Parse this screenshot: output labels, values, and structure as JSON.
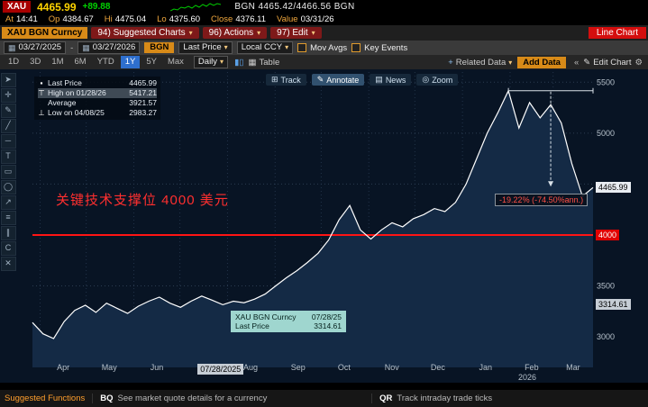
{
  "top_quote": {
    "ticker": "XAU",
    "price": "4465.99",
    "change": "+89.88",
    "bid_ask": "BGN 4465.42/4466.56 BGN",
    "stats": [
      {
        "label": "At",
        "value": "14:41"
      },
      {
        "label": "Op",
        "value": "4384.67"
      },
      {
        "label": "Hi",
        "value": "4475.04"
      },
      {
        "label": "Lo",
        "value": "4375.60"
      },
      {
        "label": "Close",
        "value": "4376.11"
      },
      {
        "label": "Value",
        "value": "03/31/26"
      }
    ]
  },
  "menubar": {
    "security": "XAU BGN Curncy",
    "menus": [
      "94) Suggested Charts",
      "96) Actions",
      "97) Edit"
    ],
    "chart_type": "Line Chart"
  },
  "controls": {
    "date_from": "03/27/2025",
    "date_to": "03/27/2026",
    "source": "BGN",
    "field": "Last Price",
    "currency": "Local CCY",
    "mov_avgs_label": "Mov Avgs",
    "key_events_label": "Key Events"
  },
  "tabs": {
    "periods": [
      "1D",
      "3D",
      "1M",
      "6M",
      "YTD",
      "1Y",
      "5Y",
      "Max"
    ],
    "active": "1Y",
    "frequency": "Daily",
    "table_label": "Table",
    "related_label": "Related Data",
    "add_data_label": "Add Data",
    "edit_chart_label": "Edit Chart"
  },
  "chart_toolbar": [
    {
      "label": "Track",
      "glyph": "⊞"
    },
    {
      "label": "Annotate",
      "glyph": "✎"
    },
    {
      "label": "News",
      "glyph": "▤"
    },
    {
      "label": "Zoom",
      "glyph": "◎"
    }
  ],
  "chart_tools": [
    {
      "name": "pointer",
      "glyph": "➤"
    },
    {
      "name": "crosshair",
      "glyph": "✛"
    },
    {
      "name": "annotate-pencil",
      "glyph": "✎"
    },
    {
      "name": "trendline",
      "glyph": "╱"
    },
    {
      "name": "horizontal-line",
      "glyph": "─"
    },
    {
      "name": "text-tool",
      "glyph": "T"
    },
    {
      "name": "rectangle-tool",
      "glyph": "▭"
    },
    {
      "name": "ellipse-tool",
      "glyph": "◯"
    },
    {
      "name": "arrow-tool",
      "glyph": "↗"
    },
    {
      "name": "fib-retracement",
      "glyph": "≡"
    },
    {
      "name": "channel-tool",
      "glyph": "∥"
    },
    {
      "name": "clone-tool",
      "glyph": "C"
    },
    {
      "name": "delete-tool",
      "glyph": "✕"
    }
  ],
  "legend": {
    "rows": [
      {
        "marker": "▪",
        "label": "Last Price",
        "value": "4465.99"
      },
      {
        "marker": "⊤",
        "label": "High on 01/28/26",
        "value": "5417.21"
      },
      {
        "marker": "",
        "label": "Average",
        "value": "3921.57"
      },
      {
        "marker": "⊥",
        "label": "Low on 04/08/25",
        "value": "2983.27"
      }
    ]
  },
  "annotation": {
    "support_text": "关键技术支撑位 4000 美元",
    "drawdown": "-19.22% (-74.50%ann.)"
  },
  "tooltip": {
    "title": "XAU BGN Curncy",
    "date": "07/28/25",
    "field": "Last Price",
    "value": "3314.61"
  },
  "axis_badges": {
    "last": "4465.99",
    "support": "4000",
    "crosshair": "3314.61",
    "crosshair_date": "07/28/2025"
  },
  "chart_data": {
    "type": "area",
    "title": "XAU BGN Curncy Last Price",
    "x_range": [
      "03/27/2025",
      "03/27/2026"
    ],
    "ylim": [
      2700,
      5600
    ],
    "y_ticks": [
      3000,
      3500,
      4000,
      4500,
      5000,
      5500
    ],
    "x_tick_labels": [
      "Apr",
      "May",
      "Jun",
      "Jul",
      "Aug",
      "Sep",
      "Oct",
      "Nov",
      "Dec",
      "Jan",
      "Feb",
      "Mar"
    ],
    "year_label": "2026",
    "support_level": 4000,
    "last_price": 4465.99,
    "high": {
      "date": "01/28/26",
      "value": 5417.21
    },
    "average": 3921.57,
    "low": {
      "date": "04/08/25",
      "value": 2983.27
    },
    "values": [
      3140,
      3030,
      2983,
      3150,
      3260,
      3310,
      3240,
      3330,
      3280,
      3230,
      3300,
      3350,
      3390,
      3330,
      3290,
      3350,
      3400,
      3360,
      3315,
      3350,
      3335,
      3370,
      3420,
      3500,
      3580,
      3650,
      3730,
      3820,
      3950,
      4150,
      4290,
      4050,
      3960,
      4050,
      4120,
      4080,
      4160,
      4200,
      4260,
      4230,
      4320,
      4500,
      4750,
      5000,
      5200,
      5417,
      5050,
      5300,
      5150,
      5280,
      5100,
      4700,
      4380,
      4466
    ],
    "line_color": "#ffffff",
    "fill_color": "#142a45",
    "support_color": "#ff1414"
  },
  "footer": {
    "title": "Suggested Functions",
    "items": [
      {
        "code": "BQ",
        "desc": "See market quote details for a currency"
      },
      {
        "code": "QR",
        "desc": "Track intraday trade ticks"
      }
    ]
  }
}
